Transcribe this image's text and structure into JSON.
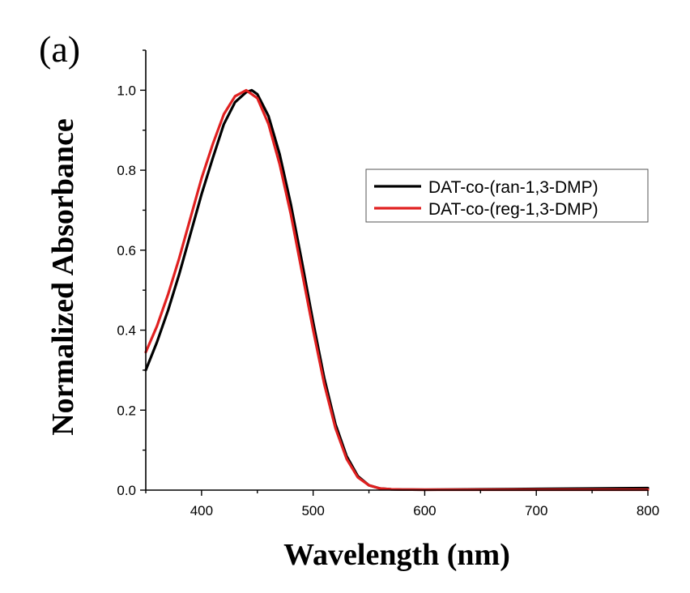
{
  "panel_label": "(a)",
  "chart_data": {
    "type": "line",
    "xlabel": "Wavelength (nm)",
    "ylabel": "Normalized Absorbance",
    "xlim": [
      350,
      800
    ],
    "ylim": [
      0,
      1.1
    ],
    "xticks": [
      400,
      500,
      600,
      700,
      800
    ],
    "xtick_labels": [
      "400",
      "500",
      "600",
      "700",
      "800"
    ],
    "yticks": [
      0.0,
      0.2,
      0.4,
      0.6,
      0.8,
      1.0
    ],
    "ytick_labels": [
      "0.0",
      "0.2",
      "0.4",
      "0.6",
      "0.8",
      "1.0"
    ],
    "grid": false,
    "legend_position": "right",
    "series": [
      {
        "name": "DAT-co-(ran-1,3-DMP)",
        "color": "#000000",
        "x": [
          350,
          360,
          370,
          380,
          390,
          400,
          410,
          420,
          430,
          440,
          445,
          450,
          460,
          470,
          480,
          490,
          500,
          510,
          520,
          530,
          540,
          550,
          560,
          570,
          580,
          600,
          650,
          700,
          750,
          800
        ],
        "y": [
          0.3,
          0.37,
          0.45,
          0.54,
          0.64,
          0.74,
          0.83,
          0.915,
          0.97,
          0.995,
          1.0,
          0.99,
          0.935,
          0.84,
          0.715,
          0.57,
          0.42,
          0.28,
          0.165,
          0.085,
          0.035,
          0.012,
          0.004,
          0.002,
          0.0015,
          0.001,
          0.002,
          0.003,
          0.004,
          0.005
        ]
      },
      {
        "name": "DAT-co-(reg-1,3-DMP)",
        "color": "#e02020",
        "x": [
          350,
          360,
          370,
          380,
          390,
          400,
          410,
          420,
          430,
          440,
          450,
          460,
          470,
          480,
          490,
          500,
          510,
          520,
          530,
          540,
          550,
          560,
          570,
          580,
          600,
          650,
          700,
          750,
          800
        ],
        "y": [
          0.345,
          0.41,
          0.49,
          0.58,
          0.68,
          0.78,
          0.865,
          0.94,
          0.985,
          1.0,
          0.98,
          0.915,
          0.815,
          0.69,
          0.545,
          0.4,
          0.265,
          0.155,
          0.078,
          0.032,
          0.012,
          0.004,
          0.002,
          0.0015,
          0.001,
          0.001,
          0.001,
          0.001,
          0.001
        ]
      }
    ]
  }
}
